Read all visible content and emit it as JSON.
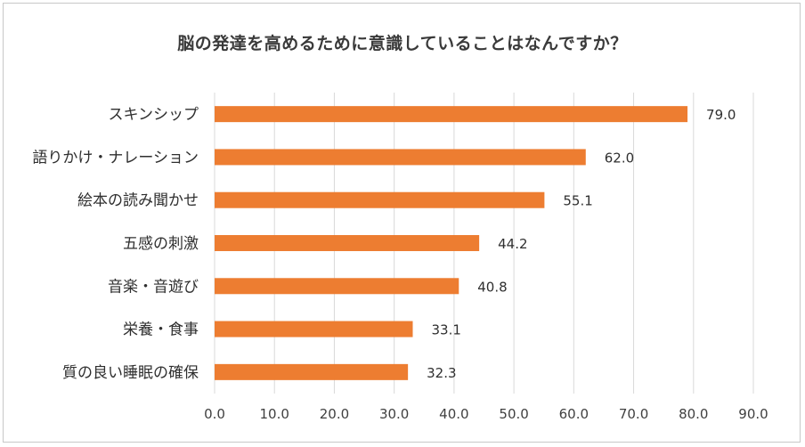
{
  "chart_data": {
    "type": "bar",
    "orientation": "horizontal",
    "title": "脳の発達を高めるために意識していることはなんですか？",
    "xlabel": "",
    "ylabel": "",
    "categories": [
      "スキンシップ",
      "語りかけ・ナレーション",
      "絵本の読み聞かせ",
      "五感の刺激",
      "音楽・音遊び",
      "栄養・食事",
      "質の良い睡眠の確保"
    ],
    "values": [
      79.0,
      62.0,
      55.1,
      44.2,
      40.8,
      33.1,
      32.3
    ],
    "value_labels": [
      "79.0",
      "62.0",
      "55.1",
      "44.2",
      "40.8",
      "33.1",
      "32.3"
    ],
    "xlim": [
      0,
      90
    ],
    "x_ticks": [
      "0.0",
      "10.0",
      "20.0",
      "30.0",
      "40.0",
      "50.0",
      "60.0",
      "70.0",
      "80.0",
      "90.0"
    ],
    "grid": "vertical",
    "legend": "none",
    "bar_color": "#ED7D31",
    "grid_color": "#d9d9d9"
  }
}
